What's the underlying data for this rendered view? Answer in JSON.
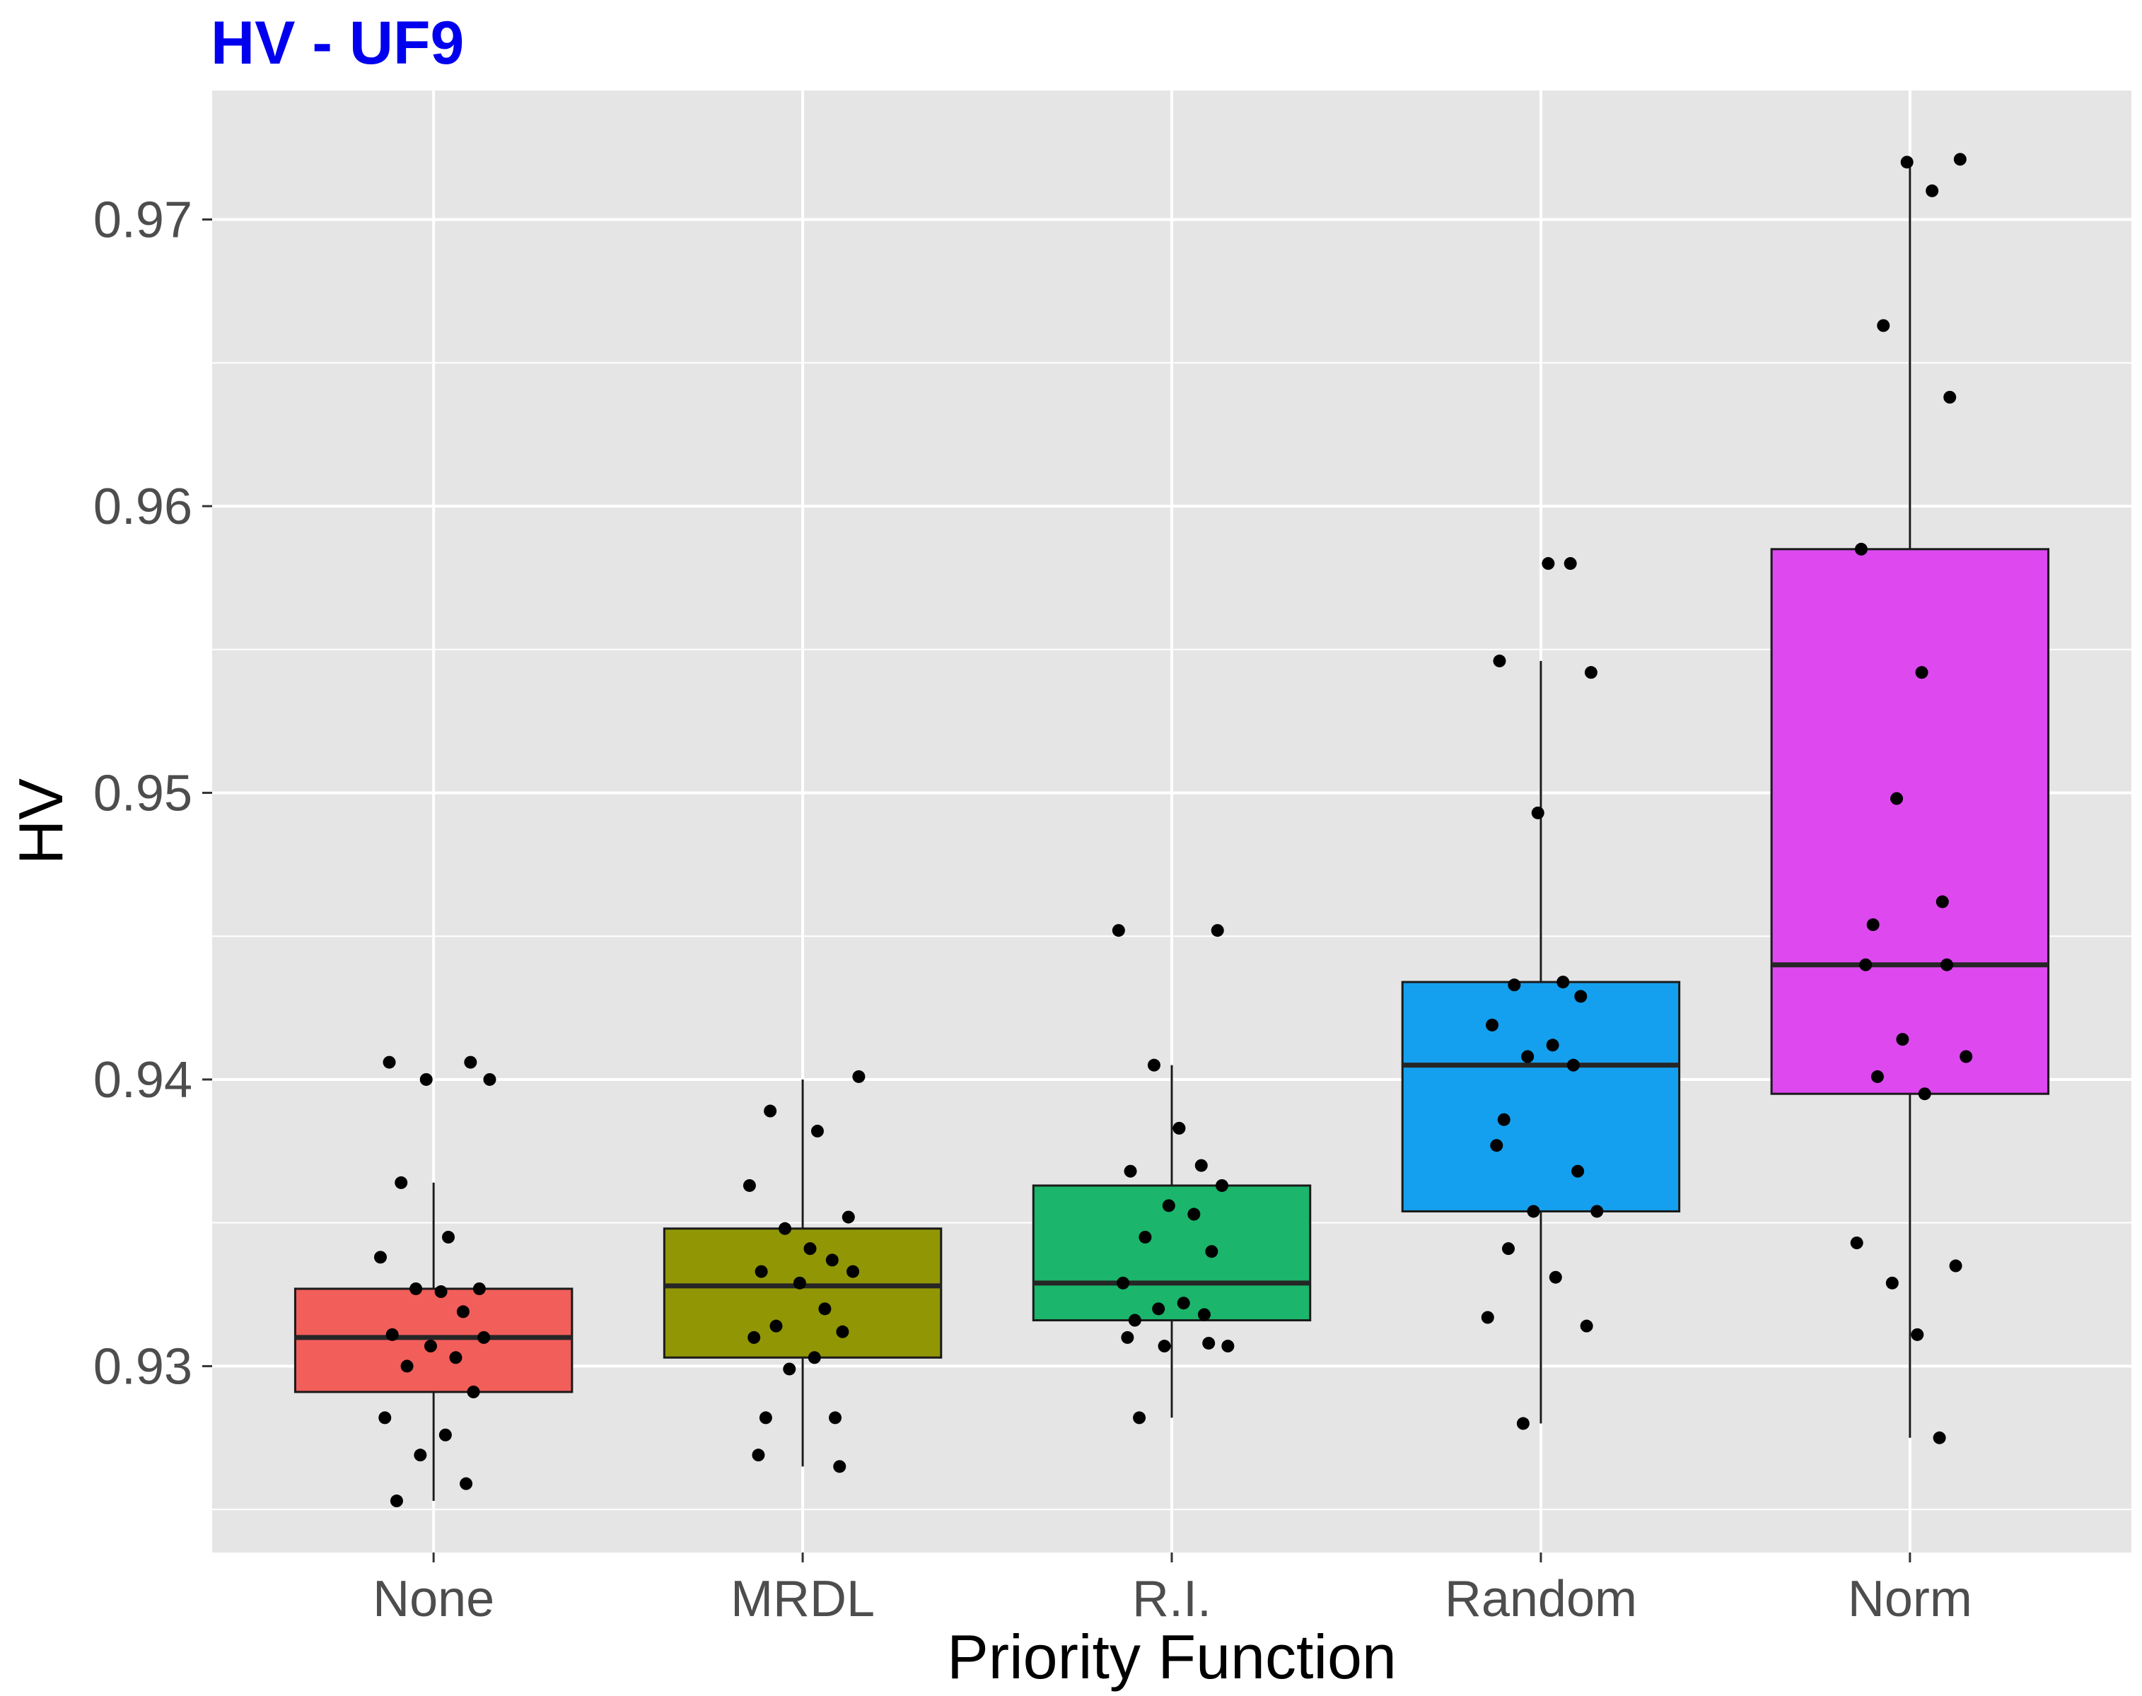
{
  "chart_data": {
    "type": "boxplot",
    "title": "HV - UF9",
    "xlabel": "Priority Function",
    "ylabel": "HV",
    "ylim": [
      0.9235,
      0.9745
    ],
    "yticks": [
      0.93,
      0.94,
      0.95,
      0.96,
      0.97
    ],
    "ytick_labels": [
      "0.93",
      "0.94",
      "0.95",
      "0.96",
      "0.97"
    ],
    "grid": true,
    "categories": [
      "None",
      "MRDL",
      "R.I.",
      "Random",
      "Norm"
    ],
    "boxes": [
      {
        "category": "None",
        "fill": "#F25E5A",
        "whisker_low": 0.9253,
        "q1": 0.9291,
        "median": 0.931,
        "q3": 0.9327,
        "whisker_high": 0.9364
      },
      {
        "category": "MRDL",
        "fill": "#919604",
        "whisker_low": 0.9265,
        "q1": 0.9303,
        "median": 0.9328,
        "q3": 0.9348,
        "whisker_high": 0.94
      },
      {
        "category": "R.I.",
        "fill": "#1BB56B",
        "whisker_low": 0.9282,
        "q1": 0.9316,
        "median": 0.9329,
        "q3": 0.9363,
        "whisker_high": 0.9405
      },
      {
        "category": "Random",
        "fill": "#14A0EE",
        "whisker_low": 0.928,
        "q1": 0.9354,
        "median": 0.9405,
        "q3": 0.9434,
        "whisker_high": 0.9546
      },
      {
        "category": "Norm",
        "fill": "#DD49EF",
        "whisker_low": 0.9275,
        "q1": 0.9395,
        "median": 0.944,
        "q3": 0.9585,
        "whisker_high": 0.9721
      }
    ],
    "points": [
      {
        "category": "None",
        "values": [
          0.9406,
          0.9406,
          0.94,
          0.94,
          0.9364,
          0.9345,
          0.9338,
          0.9327,
          0.9327,
          0.9326,
          0.9319,
          0.9311,
          0.931,
          0.9307,
          0.9303,
          0.93,
          0.9291,
          0.9282,
          0.9276,
          0.9269,
          0.9259,
          0.9253
        ]
      },
      {
        "category": "MRDL",
        "values": [
          0.9401,
          0.9389,
          0.9382,
          0.9363,
          0.9352,
          0.9348,
          0.9341,
          0.9337,
          0.9333,
          0.9333,
          0.9329,
          0.932,
          0.9314,
          0.9312,
          0.931,
          0.9303,
          0.9299,
          0.9282,
          0.9282,
          0.9269,
          0.9265
        ]
      },
      {
        "category": "R.I.",
        "values": [
          0.9452,
          0.9452,
          0.9405,
          0.9383,
          0.937,
          0.9368,
          0.9363,
          0.9356,
          0.9353,
          0.9345,
          0.934,
          0.9329,
          0.9322,
          0.932,
          0.9318,
          0.9316,
          0.931,
          0.9308,
          0.9307,
          0.9307,
          0.9282
        ]
      },
      {
        "category": "Random",
        "values": [
          0.958,
          0.958,
          0.9546,
          0.9542,
          0.9493,
          0.9434,
          0.9433,
          0.9429,
          0.9419,
          0.9412,
          0.9408,
          0.9405,
          0.9386,
          0.9377,
          0.9368,
          0.9354,
          0.9354,
          0.9341,
          0.9331,
          0.9317,
          0.9314,
          0.928
        ]
      },
      {
        "category": "Norm",
        "values": [
          0.9721,
          0.972,
          0.971,
          0.9663,
          0.9638,
          0.9585,
          0.9542,
          0.9498,
          0.9462,
          0.9454,
          0.944,
          0.944,
          0.9414,
          0.9408,
          0.9401,
          0.9395,
          0.9343,
          0.9335,
          0.9329,
          0.9311,
          0.9275
        ]
      }
    ],
    "colors": {
      "panel_background": "#E5E5E5",
      "grid_line": "#FFFFFF",
      "title": "#0000EE",
      "box_outline": "#1a1a1a",
      "median_line": "#262626",
      "point": "#000000"
    }
  }
}
